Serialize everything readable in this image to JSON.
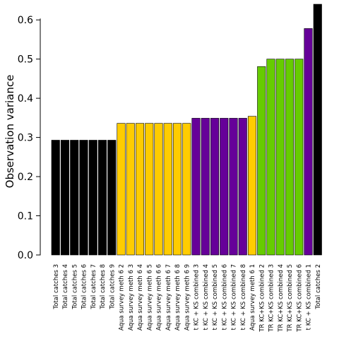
{
  "chart_data": {
    "type": "bar",
    "title": "",
    "xlabel": "",
    "ylabel": "Observation variance",
    "ylim": [
      0,
      0.64
    ],
    "yticks": [
      0.0,
      0.1,
      0.2,
      0.3,
      0.4,
      0.5,
      0.6
    ],
    "ytick_labels": [
      "0.0",
      "0.1",
      "0.2",
      "0.3",
      "0.4",
      "0.5",
      "0.6"
    ],
    "grid": false,
    "legend": "none",
    "colors": {
      "Total catches": "#000000",
      "Aqua survey": "#FFCC00",
      "KC + KS combined": "#660099",
      "TR KC+KS combined": "#66CC00"
    },
    "bars": [
      {
        "label": "Total catches 3",
        "value": 0.293,
        "color": "#000000"
      },
      {
        "label": "Total catches 4",
        "value": 0.293,
        "color": "#000000"
      },
      {
        "label": "Total catches 5",
        "value": 0.293,
        "color": "#000000"
      },
      {
        "label": "Total catches 6",
        "value": 0.293,
        "color": "#000000"
      },
      {
        "label": "Total catches 7",
        "value": 0.293,
        "color": "#000000"
      },
      {
        "label": "Total catches 8",
        "value": 0.293,
        "color": "#000000"
      },
      {
        "label": "Total catches 9",
        "value": 0.293,
        "color": "#000000"
      },
      {
        "label": "Aqua survey meth 6 2",
        "value": 0.336,
        "color": "#FFCC00"
      },
      {
        "label": "Aqua survey meth 6 3",
        "value": 0.336,
        "color": "#FFCC00"
      },
      {
        "label": "Aqua survey meth 6 4",
        "value": 0.336,
        "color": "#FFCC00"
      },
      {
        "label": "Aqua survey meth 6 5",
        "value": 0.336,
        "color": "#FFCC00"
      },
      {
        "label": "Aqua survey meth 6 6",
        "value": 0.336,
        "color": "#FFCC00"
      },
      {
        "label": "Aqua survey meth 6 7",
        "value": 0.336,
        "color": "#FFCC00"
      },
      {
        "label": "Aqua survey meth 6 8",
        "value": 0.336,
        "color": "#FFCC00"
      },
      {
        "label": "Aqua survey meth 6 9",
        "value": 0.336,
        "color": "#FFCC00"
      },
      {
        "label": "t KC + KS combined 3",
        "value": 0.349,
        "color": "#660099"
      },
      {
        "label": "t KC + KS combined 4",
        "value": 0.349,
        "color": "#660099"
      },
      {
        "label": "t KC + KS combined 5",
        "value": 0.349,
        "color": "#660099"
      },
      {
        "label": "t KC + KS combined 6",
        "value": 0.349,
        "color": "#660099"
      },
      {
        "label": "t KC + KS combined 7",
        "value": 0.349,
        "color": "#660099"
      },
      {
        "label": "t KC + KS combined 8",
        "value": 0.349,
        "color": "#660099"
      },
      {
        "label": "Aqua survey meth 6 1",
        "value": 0.354,
        "color": "#FFCC00"
      },
      {
        "label": "TR KC+KS combined 2",
        "value": 0.481,
        "color": "#66CC00"
      },
      {
        "label": "TR KC+KS combined 3",
        "value": 0.5,
        "color": "#66CC00"
      },
      {
        "label": "TR KC+KS combined 4",
        "value": 0.5,
        "color": "#66CC00"
      },
      {
        "label": "TR KC+KS combined 5",
        "value": 0.5,
        "color": "#66CC00"
      },
      {
        "label": "TR KC+KS combined 6",
        "value": 0.5,
        "color": "#66CC00"
      },
      {
        "label": "t KC + KS combined 1",
        "value": 0.578,
        "color": "#660099"
      },
      {
        "label": "Total catches 2",
        "value": 0.64,
        "color": "#000000"
      }
    ]
  }
}
